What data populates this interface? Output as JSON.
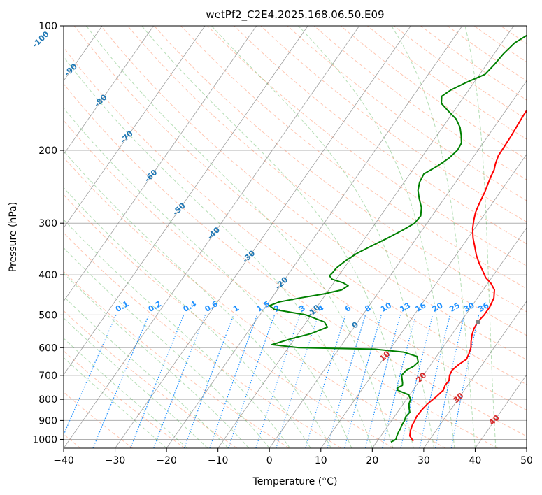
{
  "chart_data": {
    "type": "line",
    "title": "wetPf2_C2E4.2025.168.06.50.E09",
    "xlabel": "Temperature (°C)",
    "ylabel": "Pressure (hPa)",
    "xlim": [
      -40,
      50
    ],
    "ylim": [
      1050,
      100
    ],
    "y_scale": "log",
    "x_ticks": [
      "−40",
      "−30",
      "−20",
      "−10",
      "0",
      "10",
      "20",
      "30",
      "40",
      "50"
    ],
    "y_ticks": [
      "100",
      "200",
      "300",
      "400",
      "500",
      "600",
      "700",
      "800",
      "900",
      "1000"
    ],
    "grid": true,
    "colors": {
      "temperature": "#ff0000",
      "dewpoint": "#008000",
      "dry_adiabat": "#ff7f50",
      "moist_adiabat": "#2ca02c",
      "mixing_ratio": "#1e90ff",
      "skewed_isotherm": "#808080",
      "isotherm_label": "#1f77b4",
      "warm_isotherm_label": "#d62728",
      "lcl_marker": "#808080"
    },
    "isotherm_labels": [
      "-100",
      "-90",
      "-80",
      "-70",
      "-60",
      "-50",
      "-40",
      "-30",
      "-20",
      "-10",
      "0",
      "10",
      "20",
      "30",
      "40"
    ],
    "mixing_ratio_labels": [
      "0.1",
      "0.2",
      "0.4",
      "0.6",
      "1",
      "1.5",
      "2",
      "3",
      "4",
      "6",
      "8",
      "10",
      "13",
      "16",
      "20",
      "25",
      "30",
      "36"
    ],
    "mixing_ratio_values": [
      0.1,
      0.2,
      0.4,
      0.6,
      1,
      1.5,
      2,
      3,
      4,
      6,
      8,
      10,
      13,
      16,
      20,
      25,
      30,
      36
    ],
    "series": [
      {
        "label": "temperature",
        "x": [
          2.9,
          3.0,
          2.8,
          2.4,
          2.1,
          2.2,
          2.9,
          3.8,
          4.0,
          4.1,
          4.3,
          4.5,
          4.6,
          4.7,
          5.2,
          5.8,
          6.1,
          6.5,
          7.0,
          7.3,
          7.6,
          8.0,
          8.7,
          9.6,
          11.0,
          12.5,
          14.0,
          15.6,
          17.2,
          18.8,
          20.7,
          22.2,
          23.2,
          23.6,
          23.6,
          23.3,
          23.5,
          24.0,
          24.7,
          25.5,
          25.9,
          26.2,
          25.4,
          24.9,
          25.1,
          25.7,
          25.6,
          25.9,
          25.4,
          24.7,
          24.4,
          24.3,
          24.5,
          24.6,
          25.0,
          25.6,
          27.0
        ],
        "y": [
          100,
          105,
          110,
          117,
          124,
          131,
          137,
          145,
          155,
          165,
          175,
          185,
          196,
          206,
          215,
          223,
          232,
          241,
          252,
          262,
          272,
          283,
          295,
          309,
          326,
          342,
          359,
          375,
          390,
          406,
          420,
          435,
          455,
          478,
          500,
          520,
          540,
          560,
          580,
          600,
          620,
          640,
          660,
          680,
          700,
          720,
          740,
          760,
          790,
          820,
          850,
          880,
          900,
          920,
          950,
          980,
          1010
        ]
      },
      {
        "label": "dewpoint",
        "x": [
          -3.8,
          -6.0,
          -7.5,
          -8.2,
          -8.5,
          -9.0,
          -11.5,
          -13.5,
          -14.4,
          -13.5,
          -11.0,
          -8.5,
          -6.6,
          -5.3,
          -4.2,
          -4.0,
          -4.6,
          -5.7,
          -7.3,
          -7.0,
          -6.2,
          -4.8,
          -3.2,
          -2.2,
          -2.4,
          -3.8,
          -5.5,
          -7.6,
          -9.5,
          -10.7,
          -11.5,
          -11.6,
          -11.8,
          -10.8,
          -8.2,
          -6.8,
          -7.5,
          -10.5,
          -14.5,
          -18.0,
          -19.4,
          -17.9,
          -11.0,
          -6.5,
          -5.2,
          -7.5,
          -10.5,
          -13.6,
          -8.0,
          7.0,
          13.0,
          16.2,
          17.2,
          16.9,
          16.0,
          15.8,
          16.4,
          17.0,
          17.3,
          16.7,
          17.0,
          18.4,
          19.8,
          20.8,
          21.1,
          21.7,
          22.4,
          22.2,
          22.5,
          22.6,
          22.8,
          22.9,
          23.1,
          23.4,
          22.8
        ],
        "y": [
          100,
          105,
          110,
          117,
          124,
          131,
          137,
          143,
          148,
          154,
          161,
          168,
          176,
          184,
          192,
          200,
          209,
          218,
          228,
          239,
          250,
          262,
          275,
          288,
          300,
          312,
          325,
          340,
          355,
          370,
          385,
          395,
          402,
          410,
          418,
          425,
          435,
          445,
          455,
          465,
          475,
          485,
          500,
          520,
          535,
          555,
          570,
          590,
          600,
          605,
          615,
          630,
          650,
          665,
          680,
          700,
          715,
          730,
          740,
          750,
          760,
          770,
          780,
          800,
          820,
          840,
          860,
          880,
          900,
          920,
          940,
          960,
          980,
          1000,
          1015
        ]
      }
    ]
  }
}
